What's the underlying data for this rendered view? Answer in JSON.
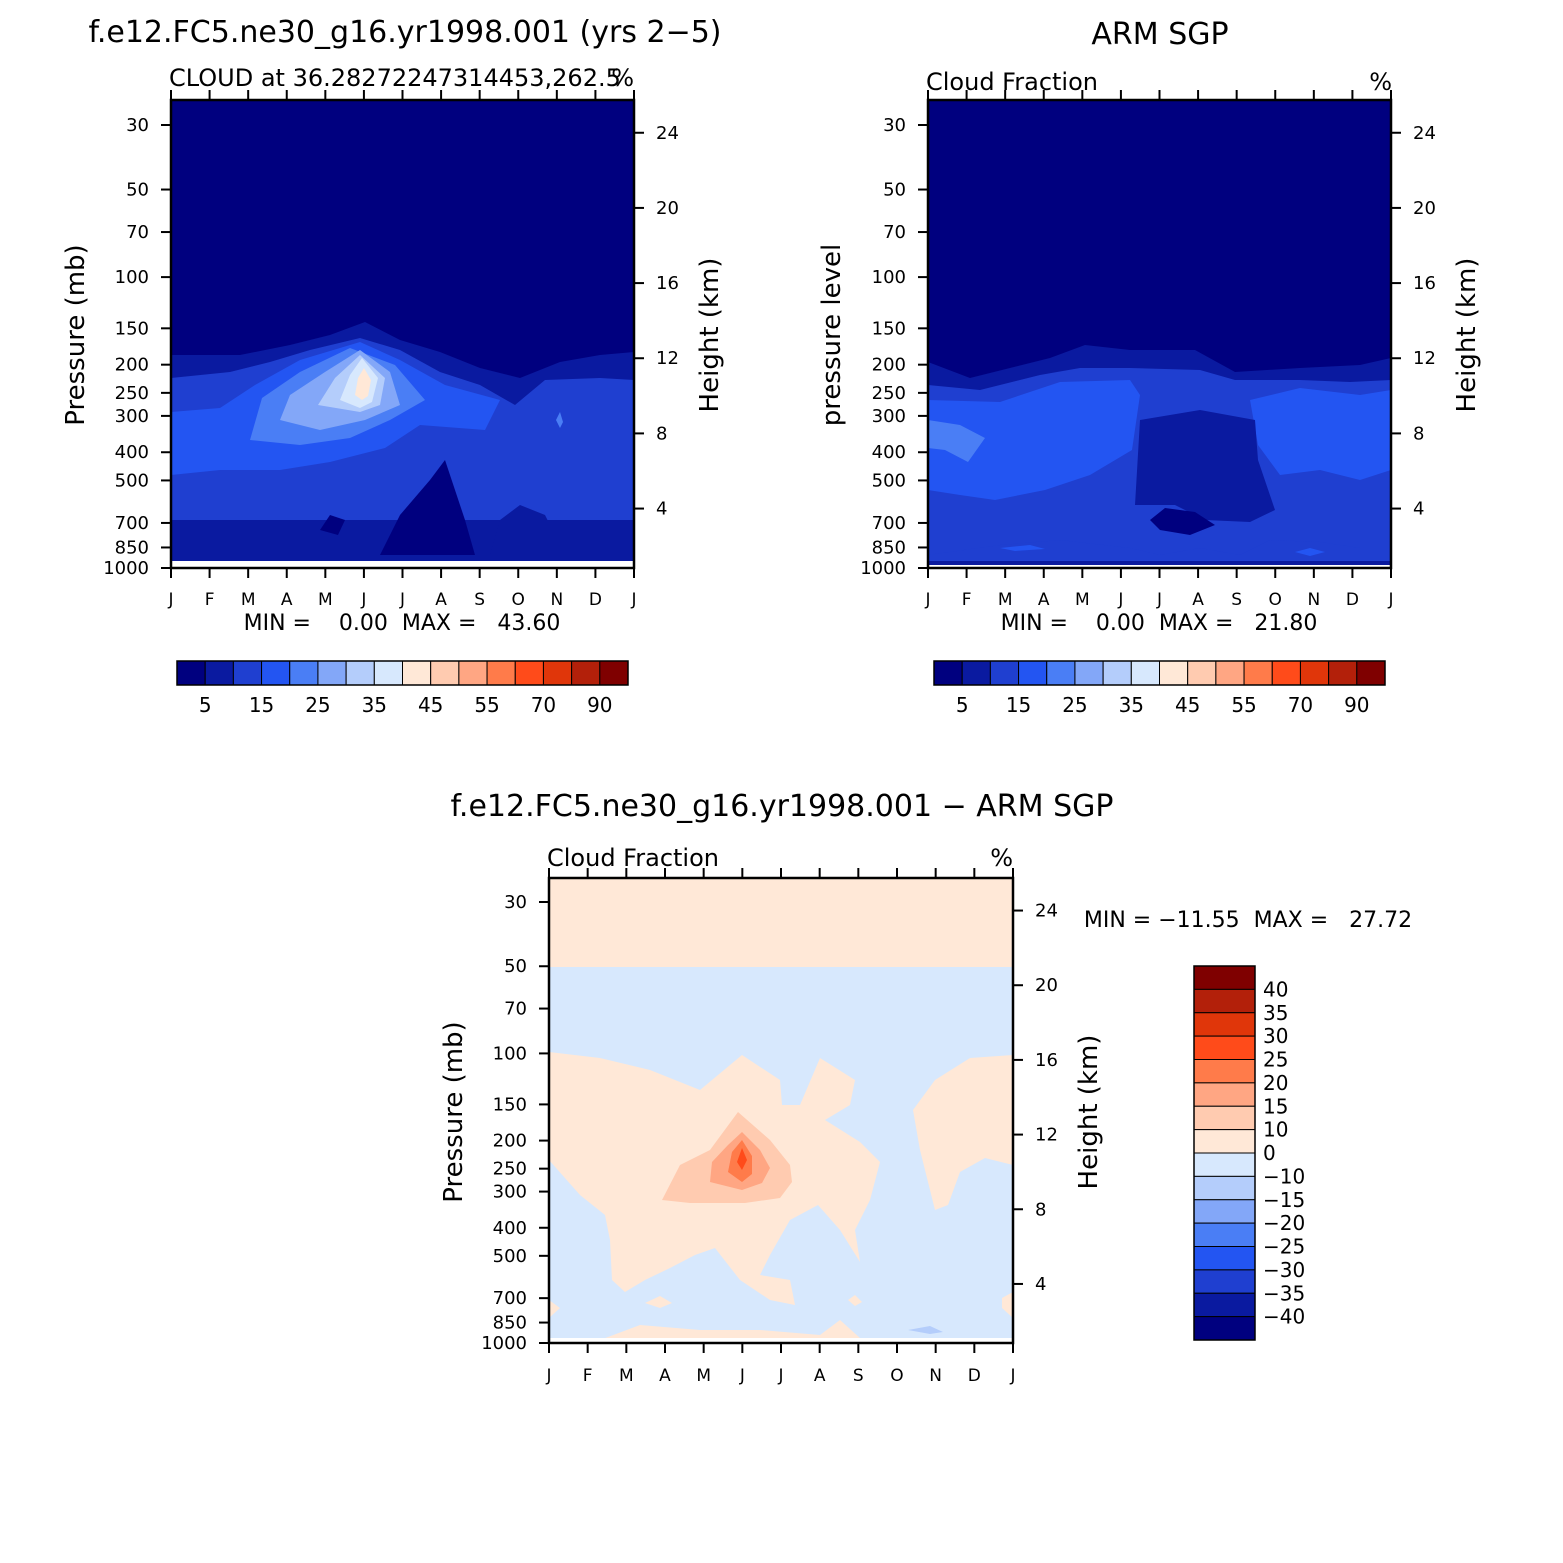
{
  "panels": [
    {
      "id": "model",
      "title": "f.e12.FC5.ne30_g16.yr1998.001 (yrs 2−5)",
      "left_label": "CLOUD at 36.28272247314453,262.5",
      "right_label": "%",
      "min_max": "MIN =    0.00  MAX =   43.60",
      "ylabel_left": "Pressure (mb)",
      "ylabel_right": "Height (km)",
      "palette": "abs"
    },
    {
      "id": "obs",
      "title": "ARM SGP",
      "left_label": "Cloud Fraction",
      "right_label": "%",
      "min_max": "MIN =    0.00  MAX =   21.80",
      "ylabel_left": "pressure level",
      "ylabel_right": "Height (km)",
      "palette": "abs"
    },
    {
      "id": "diff",
      "title": "f.e12.FC5.ne30_g16.yr1998.001 − ARM SGP",
      "left_label": "Cloud Fraction",
      "right_label": "%",
      "min_max": "MIN = −11.55  MAX =   27.72",
      "ylabel_left": "Pressure (mb)",
      "ylabel_right": "Height (km)",
      "palette": "diff"
    }
  ],
  "chart_data": [
    {
      "type": "heatmap",
      "panel": "model",
      "x_tick_labels": [
        "J",
        "F",
        "M",
        "A",
        "M",
        "J",
        "J",
        "A",
        "S",
        "O",
        "N",
        "D",
        "J"
      ],
      "y_tick_labels": [
        "30",
        "50",
        "70",
        "100",
        "150",
        "200",
        "250",
        "300",
        "400",
        "500",
        "700",
        "850",
        "1000"
      ],
      "y_right_tick_labels": [
        "24",
        "20",
        "16",
        "12",
        "8",
        "4"
      ],
      "y_scale": "log pressure",
      "ylim": [
        1000,
        20
      ],
      "min": 0.0,
      "max": 43.6,
      "contour_levels": [
        5,
        10,
        15,
        20,
        25,
        30,
        35,
        40,
        45,
        50,
        55,
        60,
        70,
        80,
        90
      ],
      "colorbar_labels": [
        "5",
        "15",
        "25",
        "35",
        "45",
        "55",
        "70",
        "90"
      ],
      "colors": [
        "#00007f",
        "#0a1aa0",
        "#1f3fd0",
        "#2355f2",
        "#4a7ef5",
        "#83a7f8",
        "#b4cdfb",
        "#d7e8fd",
        "#ffe8d7",
        "#ffcbb0",
        "#ffa683",
        "#ff7b4a",
        "#ff4b1a",
        "#e0360a",
        "#b3200a",
        "#7f0000"
      ],
      "approx_features": [
        {
          "month": "J",
          "pressure_mb": 260,
          "value": 42
        },
        {
          "month": "J",
          "pressure_mb": 150,
          "value": 5
        },
        {
          "month": "A",
          "pressure_mb": 750,
          "value": 2
        }
      ]
    },
    {
      "type": "heatmap",
      "panel": "obs",
      "x_tick_labels": [
        "J",
        "F",
        "M",
        "A",
        "M",
        "J",
        "J",
        "A",
        "S",
        "O",
        "N",
        "D",
        "J"
      ],
      "y_tick_labels": [
        "30",
        "50",
        "70",
        "100",
        "150",
        "200",
        "250",
        "300",
        "400",
        "500",
        "700",
        "850",
        "1000"
      ],
      "y_right_tick_labels": [
        "24",
        "20",
        "16",
        "12",
        "8",
        "4"
      ],
      "y_scale": "log pressure",
      "ylim": [
        1000,
        20
      ],
      "min": 0.0,
      "max": 21.8,
      "contour_levels": [
        5,
        10,
        15,
        20,
        25,
        30,
        35,
        40,
        45,
        50,
        55,
        60,
        70,
        80,
        90
      ],
      "colorbar_labels": [
        "5",
        "15",
        "25",
        "35",
        "45",
        "55",
        "70",
        "90"
      ],
      "colors": [
        "#00007f",
        "#0a1aa0",
        "#1f3fd0",
        "#2355f2",
        "#4a7ef5",
        "#83a7f8",
        "#b4cdfb",
        "#d7e8fd",
        "#ffe8d7",
        "#ffcbb0",
        "#ffa683",
        "#ff7b4a",
        "#ff4b1a",
        "#e0360a",
        "#b3200a",
        "#7f0000"
      ],
      "approx_features": [
        {
          "month": "J",
          "pressure_mb": 350,
          "value": 21
        },
        {
          "month": "J",
          "pressure_mb": 720,
          "value": 3
        }
      ]
    },
    {
      "type": "heatmap",
      "panel": "diff",
      "x_tick_labels": [
        "J",
        "F",
        "M",
        "A",
        "M",
        "J",
        "J",
        "A",
        "S",
        "O",
        "N",
        "D",
        "J"
      ],
      "y_tick_labels": [
        "30",
        "50",
        "70",
        "100",
        "150",
        "200",
        "250",
        "300",
        "400",
        "500",
        "700",
        "850",
        "1000"
      ],
      "y_right_tick_labels": [
        "24",
        "20",
        "16",
        "12",
        "8",
        "4"
      ],
      "y_scale": "log pressure",
      "ylim": [
        1000,
        20
      ],
      "min": -11.55,
      "max": 27.72,
      "contour_levels": [
        -40,
        -35,
        -30,
        -25,
        -20,
        -15,
        -10,
        0,
        10,
        15,
        20,
        25,
        30,
        35,
        40
      ],
      "colorbar_labels": [
        "40",
        "35",
        "30",
        "25",
        "20",
        "15",
        "10",
        "0",
        "−10",
        "−15",
        "−20",
        "−25",
        "−30",
        "−35",
        "−40"
      ],
      "colors_top_to_bottom": [
        "#7f0000",
        "#b3200a",
        "#e0360a",
        "#ff4b1a",
        "#ff7b4a",
        "#ffa683",
        "#ffcbb0",
        "#ffe8d7",
        "#d7e8fd",
        "#b4cdfb",
        "#83a7f8",
        "#4a7ef5",
        "#2355f2",
        "#1f3fd0",
        "#0a1aa0",
        "#00007f"
      ],
      "approx_features": [
        {
          "month": "J",
          "pressure_mb": 230,
          "value": 27
        },
        {
          "month": "J",
          "pressure_mb": 40,
          "value": 5
        },
        {
          "month": "O",
          "pressure_mb": 400,
          "value": -5
        },
        {
          "month": "N",
          "pressure_mb": 960,
          "value": -11
        }
      ]
    }
  ]
}
